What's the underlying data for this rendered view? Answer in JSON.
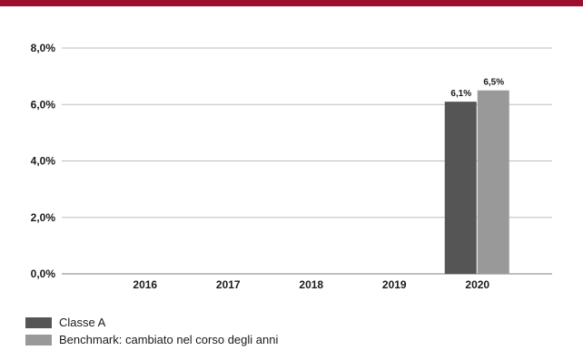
{
  "colors": {
    "accent_bar": "#9b0f2f",
    "grid": "#bdbdbd",
    "axis": "#9a9a9a"
  },
  "chart_data": {
    "type": "bar",
    "categories": [
      "2016",
      "2017",
      "2018",
      "2019",
      "2020"
    ],
    "series": [
      {
        "name": "Classe A",
        "color": "#555555",
        "values": [
          null,
          null,
          null,
          null,
          6.1
        ],
        "labels": [
          "",
          "",
          "",
          "",
          "6,1%"
        ]
      },
      {
        "name": "Benchmark: cambiato nel corso degli anni",
        "color": "#999999",
        "values": [
          null,
          null,
          null,
          null,
          6.5
        ],
        "labels": [
          "",
          "",
          "",
          "",
          "6,5%"
        ]
      }
    ],
    "ylim": [
      0,
      8
    ],
    "yticks": [
      0,
      2,
      4,
      6,
      8
    ],
    "ytick_labels": [
      "0,0%",
      "2,0%",
      "4,0%",
      "6,0%",
      "8,0%"
    ],
    "grid": true,
    "legend_position": "bottom-left"
  }
}
